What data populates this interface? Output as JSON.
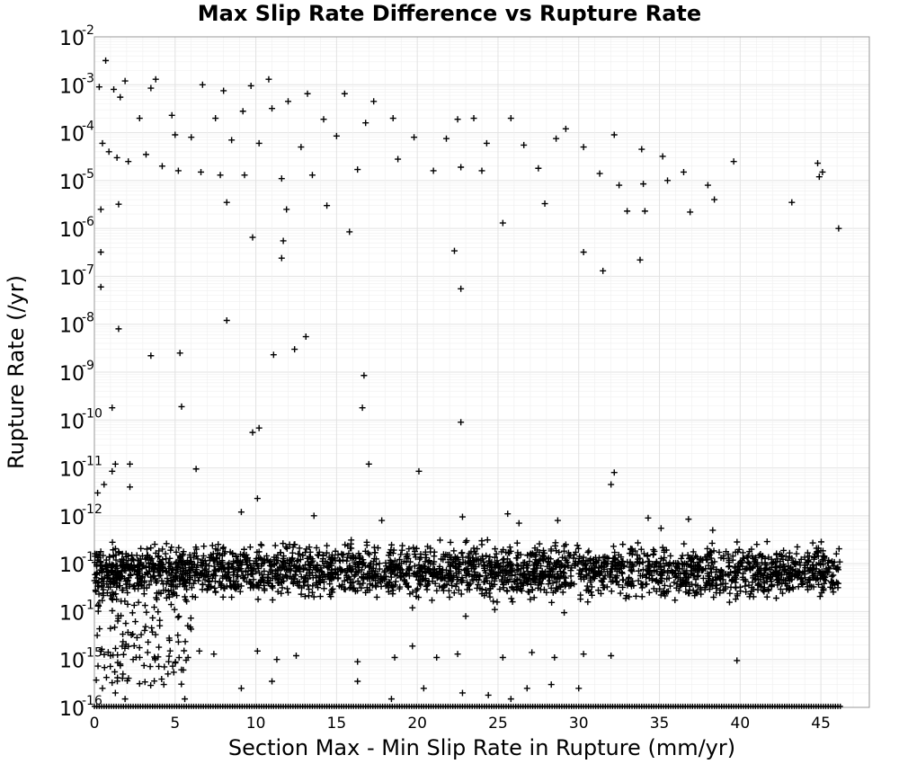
{
  "chart_data": {
    "type": "scatter",
    "title": "Max Slip Rate Difference vs Rupture Rate",
    "xlabel": "Section Max - Min Slip Rate in Rupture (mm/yr)",
    "ylabel": "Rupture Rate (/yr)",
    "xlim": [
      0,
      48
    ],
    "ylim": [
      1e-16,
      0.01
    ],
    "y_scale": "log",
    "grid": true,
    "legend": "none",
    "marker": "plus",
    "marker_color": "#000000",
    "x_ticks": [
      "0",
      "5",
      "10",
      "15",
      "20",
      "25",
      "30",
      "35",
      "40",
      "45"
    ],
    "y_ticks": [
      {
        "base": "10",
        "exp": "-16"
      },
      {
        "base": "10",
        "exp": "-15"
      },
      {
        "base": "10",
        "exp": "-14"
      },
      {
        "base": "10",
        "exp": "-13"
      },
      {
        "base": "10",
        "exp": "-12"
      },
      {
        "base": "10",
        "exp": "-11"
      },
      {
        "base": "10",
        "exp": "-10"
      },
      {
        "base": "10",
        "exp": "-9"
      },
      {
        "base": "10",
        "exp": "-8"
      },
      {
        "base": "10",
        "exp": "-7"
      },
      {
        "base": "10",
        "exp": "-6"
      },
      {
        "base": "10",
        "exp": "-5"
      },
      {
        "base": "10",
        "exp": "-4"
      },
      {
        "base": "10",
        "exp": "-3"
      },
      {
        "base": "10",
        "exp": "-2"
      }
    ],
    "points": [
      [
        0.7,
        0.0032
      ],
      [
        1.9,
        0.0012
      ],
      [
        3.8,
        0.0013
      ],
      [
        10.8,
        0.0013
      ],
      [
        6.7,
        0.001
      ],
      [
        9.7,
        0.00095
      ],
      [
        0.3,
        0.0009
      ],
      [
        1.2,
        0.0008
      ],
      [
        3.5,
        0.00085
      ],
      [
        13.2,
        0.00065
      ],
      [
        15.5,
        0.00065
      ],
      [
        8.0,
        0.00075
      ],
      [
        17.3,
        0.00045
      ],
      [
        12.0,
        0.00045
      ],
      [
        1.6,
        0.00055
      ],
      [
        2.8,
        0.0002
      ],
      [
        4.8,
        0.00023
      ],
      [
        7.5,
        0.0002
      ],
      [
        9.2,
        0.00028
      ],
      [
        11.0,
        0.00032
      ],
      [
        14.2,
        0.00019
      ],
      [
        16.8,
        0.00016
      ],
      [
        18.5,
        0.0002
      ],
      [
        22.5,
        0.00019
      ],
      [
        23.5,
        0.0002
      ],
      [
        25.8,
        0.0002
      ],
      [
        29.2,
        0.00012
      ],
      [
        32.2,
        9e-05
      ],
      [
        28.6,
        7.5e-05
      ],
      [
        33.9,
        4.5e-05
      ],
      [
        35.2,
        3.2e-05
      ],
      [
        30.3,
        5e-05
      ],
      [
        19.8,
        8e-05
      ],
      [
        21.8,
        7.5e-05
      ],
      [
        24.3,
        6e-05
      ],
      [
        26.6,
        5.5e-05
      ],
      [
        15.0,
        8.5e-05
      ],
      [
        5.0,
        9e-05
      ],
      [
        6.0,
        8e-05
      ],
      [
        8.5,
        7e-05
      ],
      [
        10.2,
        6e-05
      ],
      [
        12.8,
        5e-05
      ],
      [
        0.5,
        6e-05
      ],
      [
        0.9,
        4e-05
      ],
      [
        1.4,
        3e-05
      ],
      [
        2.1,
        2.5e-05
      ],
      [
        3.2,
        3.5e-05
      ],
      [
        4.2,
        2e-05
      ],
      [
        5.2,
        1.6e-05
      ],
      [
        6.6,
        1.5e-05
      ],
      [
        7.8,
        1.3e-05
      ],
      [
        9.3,
        1.3e-05
      ],
      [
        11.6,
        1.1e-05
      ],
      [
        13.5,
        1.3e-05
      ],
      [
        16.3,
        1.7e-05
      ],
      [
        18.8,
        2.8e-05
      ],
      [
        21.0,
        1.6e-05
      ],
      [
        22.7,
        1.9e-05
      ],
      [
        24.0,
        1.6e-05
      ],
      [
        27.5,
        1.8e-05
      ],
      [
        31.3,
        1.4e-05
      ],
      [
        32.5,
        8e-06
      ],
      [
        34.0,
        8.5e-06
      ],
      [
        35.5,
        1e-05
      ],
      [
        36.5,
        1.5e-05
      ],
      [
        38.0,
        8e-06
      ],
      [
        39.6,
        2.5e-05
      ],
      [
        44.8,
        2.3e-05
      ],
      [
        44.9,
        1.2e-05
      ],
      [
        45.1,
        1.5e-05
      ],
      [
        38.4,
        4e-06
      ],
      [
        43.2,
        3.5e-06
      ],
      [
        33.0,
        2.3e-06
      ],
      [
        34.1,
        2.3e-06
      ],
      [
        36.9,
        2.2e-06
      ],
      [
        27.9,
        3.3e-06
      ],
      [
        25.3,
        1.3e-06
      ],
      [
        46.1,
        1e-06
      ],
      [
        0.4,
        2.5e-06
      ],
      [
        1.5,
        3.2e-06
      ],
      [
        8.2,
        3.5e-06
      ],
      [
        11.9,
        2.5e-06
      ],
      [
        14.4,
        3e-06
      ],
      [
        15.8,
        8.5e-07
      ],
      [
        9.8,
        6.5e-07
      ],
      [
        11.7,
        5.5e-07
      ],
      [
        11.6,
        2.4e-07
      ],
      [
        22.3,
        3.4e-07
      ],
      [
        30.3,
        3.2e-07
      ],
      [
        31.5,
        1.3e-07
      ],
      [
        33.8,
        2.2e-07
      ],
      [
        0.4,
        3.2e-07
      ],
      [
        0.4,
        6e-08
      ],
      [
        22.7,
        5.5e-08
      ],
      [
        1.5,
        8e-09
      ],
      [
        8.2,
        1.2e-08
      ],
      [
        13.1,
        5.5e-09
      ],
      [
        12.4,
        3e-09
      ],
      [
        11.1,
        2.3e-09
      ],
      [
        3.5,
        2.2e-09
      ],
      [
        5.3,
        2.5e-09
      ],
      [
        16.7,
        8.5e-10
      ],
      [
        1.1,
        1.8e-10
      ],
      [
        5.4,
        1.9e-10
      ],
      [
        16.6,
        1.8e-10
      ],
      [
        22.7,
        9e-11
      ],
      [
        9.8,
        5.5e-11
      ],
      [
        10.2,
        6.8e-11
      ],
      [
        1.1,
        8.5e-12
      ],
      [
        1.3,
        1.2e-11
      ],
      [
        2.2,
        1.2e-11
      ],
      [
        6.3,
        9.5e-12
      ],
      [
        17.0,
        1.2e-11
      ],
      [
        20.1,
        8.5e-12
      ],
      [
        32.2,
        8e-12
      ],
      [
        32.0,
        4.5e-12
      ],
      [
        0.6,
        4.5e-12
      ],
      [
        2.2,
        4e-12
      ],
      [
        0.2,
        3e-12
      ],
      [
        10.1,
        2.3e-12
      ],
      [
        9.1,
        1.2e-12
      ],
      [
        13.6,
        1e-12
      ],
      [
        17.8,
        8e-13
      ],
      [
        22.8,
        9.5e-13
      ],
      [
        25.6,
        1.1e-12
      ],
      [
        28.7,
        8e-13
      ],
      [
        34.3,
        9e-13
      ],
      [
        36.8,
        8.5e-13
      ],
      [
        35.1,
        5.5e-13
      ],
      [
        38.3,
        5e-13
      ],
      [
        26.3,
        7e-13
      ],
      [
        0.5,
        8e-14
      ],
      [
        1.2,
        5e-14
      ],
      [
        2.5,
        3e-14
      ],
      [
        4.0,
        2.5e-14
      ],
      [
        5.5,
        4.5e-14
      ],
      [
        7.0,
        3e-14
      ],
      [
        8.5,
        2e-14
      ],
      [
        10.5,
        3.5e-14
      ],
      [
        12.0,
        2.5e-14
      ],
      [
        14.0,
        4e-14
      ],
      [
        16.0,
        3e-14
      ],
      [
        17.5,
        2e-14
      ],
      [
        20.5,
        4.5e-14
      ],
      [
        22.0,
        2e-14
      ],
      [
        24.5,
        3e-14
      ],
      [
        26.5,
        4e-14
      ],
      [
        28.0,
        2.5e-14
      ],
      [
        29.5,
        3.5e-14
      ],
      [
        19.7,
        1.2e-14
      ],
      [
        23.0,
        8e-15
      ],
      [
        24.8,
        1.1e-14
      ],
      [
        27.0,
        1.8e-14
      ],
      [
        25.9,
        1.6e-14
      ],
      [
        29.1,
        9.5e-15
      ],
      [
        0.4,
        1.5e-15
      ],
      [
        1.0,
        1.2e-15
      ],
      [
        1.6,
        8e-16
      ],
      [
        2.4,
        1e-15
      ],
      [
        3.3,
        1.4e-15
      ],
      [
        4.6,
        9e-16
      ],
      [
        5.8,
        1.1e-15
      ],
      [
        6.5,
        1.5e-15
      ],
      [
        7.4,
        1.3e-15
      ],
      [
        10.1,
        1.5e-15
      ],
      [
        11.3,
        1e-15
      ],
      [
        12.5,
        1.2e-15
      ],
      [
        16.3,
        9e-16
      ],
      [
        18.6,
        1.1e-15
      ],
      [
        19.7,
        1.9e-15
      ],
      [
        21.2,
        1.1e-15
      ],
      [
        22.5,
        1.3e-15
      ],
      [
        25.3,
        1.1e-15
      ],
      [
        27.1,
        1.4e-15
      ],
      [
        28.5,
        1.1e-15
      ],
      [
        30.3,
        1.3e-15
      ],
      [
        32.0,
        1.2e-15
      ],
      [
        39.8,
        9.5e-16
      ],
      [
        0.5,
        2.5e-16
      ],
      [
        1.3,
        2e-16
      ],
      [
        1.9,
        1.5e-16
      ],
      [
        4.3,
        3e-16
      ],
      [
        5.6,
        1.5e-16
      ],
      [
        9.1,
        2.5e-16
      ],
      [
        11.0,
        3.5e-16
      ],
      [
        16.3,
        3.5e-16
      ],
      [
        18.4,
        1.5e-16
      ],
      [
        20.4,
        2.5e-16
      ],
      [
        22.8,
        2e-16
      ],
      [
        24.4,
        1.8e-16
      ],
      [
        25.8,
        1.5e-16
      ],
      [
        26.8,
        2.5e-16
      ],
      [
        28.3,
        3e-16
      ],
      [
        30.0,
        2.5e-16
      ]
    ],
    "dense_band": {
      "x_range": [
        0,
        46.2
      ],
      "y_center": 7e-14,
      "y_spread_decades": 0.25
    },
    "floor_band": {
      "x_range": [
        0,
        46.2
      ],
      "y_value": 1e-16
    }
  }
}
